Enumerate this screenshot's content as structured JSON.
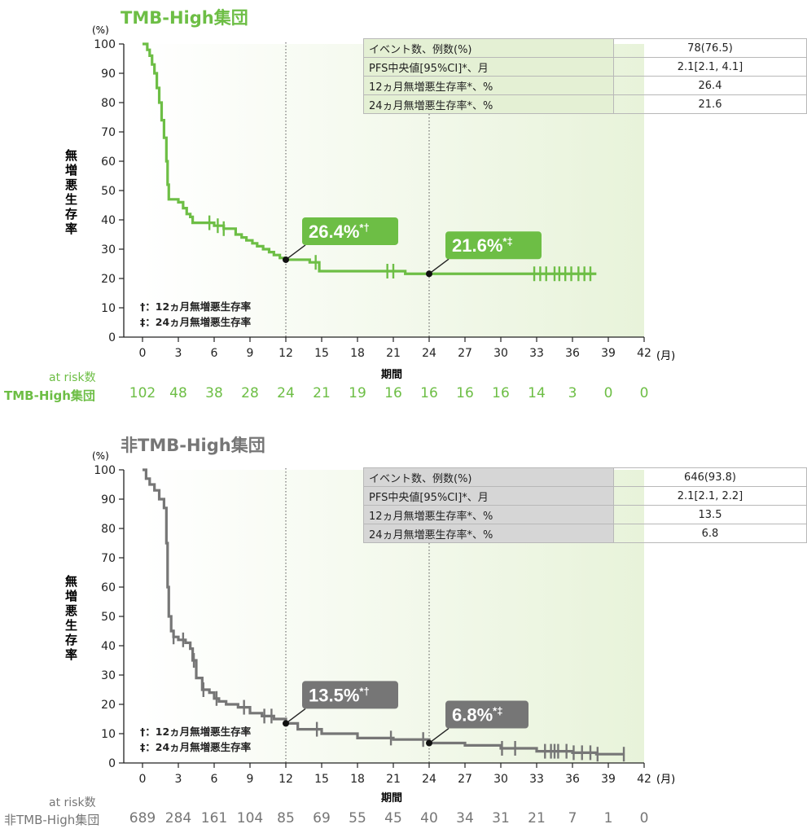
{
  "chart_data": [
    {
      "type": "line",
      "id": "high",
      "title": "TMB-High集団",
      "xlabel": "期間",
      "ylabel": "無増悪生存率",
      "y_unit": "(%)",
      "x_unit": "(月)",
      "xlim": [
        0,
        42
      ],
      "ylim": [
        0,
        100
      ],
      "xticks": [
        0,
        3,
        6,
        9,
        12,
        15,
        18,
        21,
        24,
        27,
        30,
        33,
        36,
        39,
        42
      ],
      "yticks": [
        0,
        10,
        20,
        30,
        40,
        50,
        60,
        70,
        80,
        90,
        100
      ],
      "colors": {
        "line": "#6dbe45",
        "title": "#6dbe45",
        "label_bg": "#6dbe45",
        "shade": "#e8f3da",
        "table_label_bg": "#e4f0d4"
      },
      "series": [
        {
          "name": "TMB-High集団",
          "x": [
            0,
            0.4,
            0.6,
            0.8,
            1.0,
            1.2,
            1.4,
            1.6,
            1.8,
            2.0,
            2.1,
            2.2,
            2.3,
            2.5,
            3.0,
            3.4,
            3.7,
            4.0,
            4.2,
            4.7,
            5.5,
            6.0,
            6.4,
            6.8,
            7.2,
            7.8,
            8.3,
            8.7,
            9.2,
            9.6,
            10.1,
            10.6,
            11.0,
            11.5,
            12.0,
            14.0,
            14.8,
            17.0,
            20.0,
            22.0,
            24.0,
            38.0
          ],
          "y": [
            100,
            98,
            96,
            93,
            90,
            85,
            80,
            74,
            68,
            60,
            52,
            47,
            47,
            47,
            46,
            44,
            42,
            41,
            39,
            39,
            39,
            38,
            38,
            37,
            37,
            35,
            34,
            33,
            32,
            31,
            30,
            29,
            28,
            27,
            26.4,
            25.5,
            22.5,
            22.5,
            22.5,
            21.6,
            21.6,
            21.6
          ]
        }
      ],
      "censor_x": [
        5.6,
        6.3,
        6.8,
        14.5,
        20.5,
        21.0,
        32.8,
        33.3,
        33.8,
        34.5,
        34.9,
        35.4,
        35.9,
        36.5,
        37.0,
        37.5
      ],
      "annotations": [
        {
          "x": 12,
          "y": 26.4,
          "text": "26.4%",
          "sup": "*†"
        },
        {
          "x": 24,
          "y": 21.6,
          "text": "21.6%",
          "sup": "*‡"
        }
      ],
      "footnotes": [
        "†：12ヵ月無増悪生存率",
        "‡：24ヵ月無増悪生存率"
      ],
      "stats_table": [
        {
          "label": "イベント数、例数(%)",
          "value": "78(76.5)"
        },
        {
          "label": "PFS中央値[95%CI]*、月",
          "value": "2.1[2.1, 4.1]"
        },
        {
          "label": "12ヵ月無増悪生存率*、%",
          "value": "26.4"
        },
        {
          "label": "24ヵ月無増悪生存率*、%",
          "value": "21.6"
        }
      ],
      "at_risk": {
        "caption": "at risk数",
        "group": "TMB-High集団",
        "values": [
          102,
          48,
          38,
          28,
          24,
          21,
          19,
          16,
          16,
          16,
          16,
          14,
          3,
          0,
          0
        ]
      }
    },
    {
      "type": "line",
      "id": "non",
      "title": "非TMB-High集団",
      "xlabel": "期間",
      "ylabel": "無増悪生存率",
      "y_unit": "(%)",
      "x_unit": "(月)",
      "xlim": [
        0,
        42
      ],
      "ylim": [
        0,
        100
      ],
      "xticks": [
        0,
        3,
        6,
        9,
        12,
        15,
        18,
        21,
        24,
        27,
        30,
        33,
        36,
        39,
        42
      ],
      "yticks": [
        0,
        10,
        20,
        30,
        40,
        50,
        60,
        70,
        80,
        90,
        100
      ],
      "colors": {
        "line": "#767676",
        "title": "#767676",
        "label_bg": "#767676",
        "shade": "#e8f3da",
        "table_label_bg": "#d6d6d6"
      },
      "series": [
        {
          "name": "非TMB-High集団",
          "x": [
            0,
            0.3,
            0.6,
            1.0,
            1.4,
            1.8,
            2.0,
            2.1,
            2.2,
            2.4,
            2.6,
            3.0,
            3.6,
            4.0,
            4.2,
            4.5,
            5.0,
            5.6,
            6.0,
            6.4,
            7.0,
            8.0,
            9.0,
            10.0,
            11.0,
            12.0,
            13.0,
            15.0,
            18.0,
            21.0,
            24.0,
            27.0,
            30.0,
            33.0,
            36.0,
            38.0,
            40.3
          ],
          "y": [
            100,
            97,
            95,
            93,
            90,
            87,
            75,
            60,
            50,
            45,
            43,
            42,
            41,
            39,
            35,
            29,
            25,
            24,
            22,
            21,
            20,
            19,
            17,
            16,
            15,
            13.5,
            11.5,
            10,
            8.5,
            8,
            6.8,
            6,
            5,
            4,
            3.5,
            3,
            3
          ]
        }
      ],
      "censor_x": [
        2.6,
        3.4,
        4.3,
        5.1,
        6.2,
        8.5,
        10.2,
        10.8,
        14.6,
        20.8,
        23.5,
        30.1,
        31.2,
        33.7,
        34.2,
        34.5,
        34.8,
        35.5,
        36.1,
        36.8,
        37.5,
        38.1,
        40.3
      ],
      "annotations": [
        {
          "x": 12,
          "y": 13.5,
          "text": "13.5%",
          "sup": "*†"
        },
        {
          "x": 24,
          "y": 6.8,
          "text": "6.8%",
          "sup": "*‡"
        }
      ],
      "footnotes": [
        "†：12ヵ月無増悪生存率",
        "‡：24ヵ月無増悪生存率"
      ],
      "stats_table": [
        {
          "label": "イベント数、例数(%)",
          "value": "646(93.8)"
        },
        {
          "label": "PFS中央値[95%CI]*、月",
          "value": "2.1[2.1, 2.2]"
        },
        {
          "label": "12ヵ月無増悪生存率*、%",
          "value": "13.5"
        },
        {
          "label": "24ヵ月無増悪生存率*、%",
          "value": "6.8"
        }
      ],
      "at_risk": {
        "caption": "at risk数",
        "group": "非TMB-High集団",
        "values": [
          689,
          284,
          161,
          104,
          85,
          69,
          55,
          45,
          40,
          34,
          31,
          21,
          7,
          1,
          0
        ]
      }
    }
  ]
}
